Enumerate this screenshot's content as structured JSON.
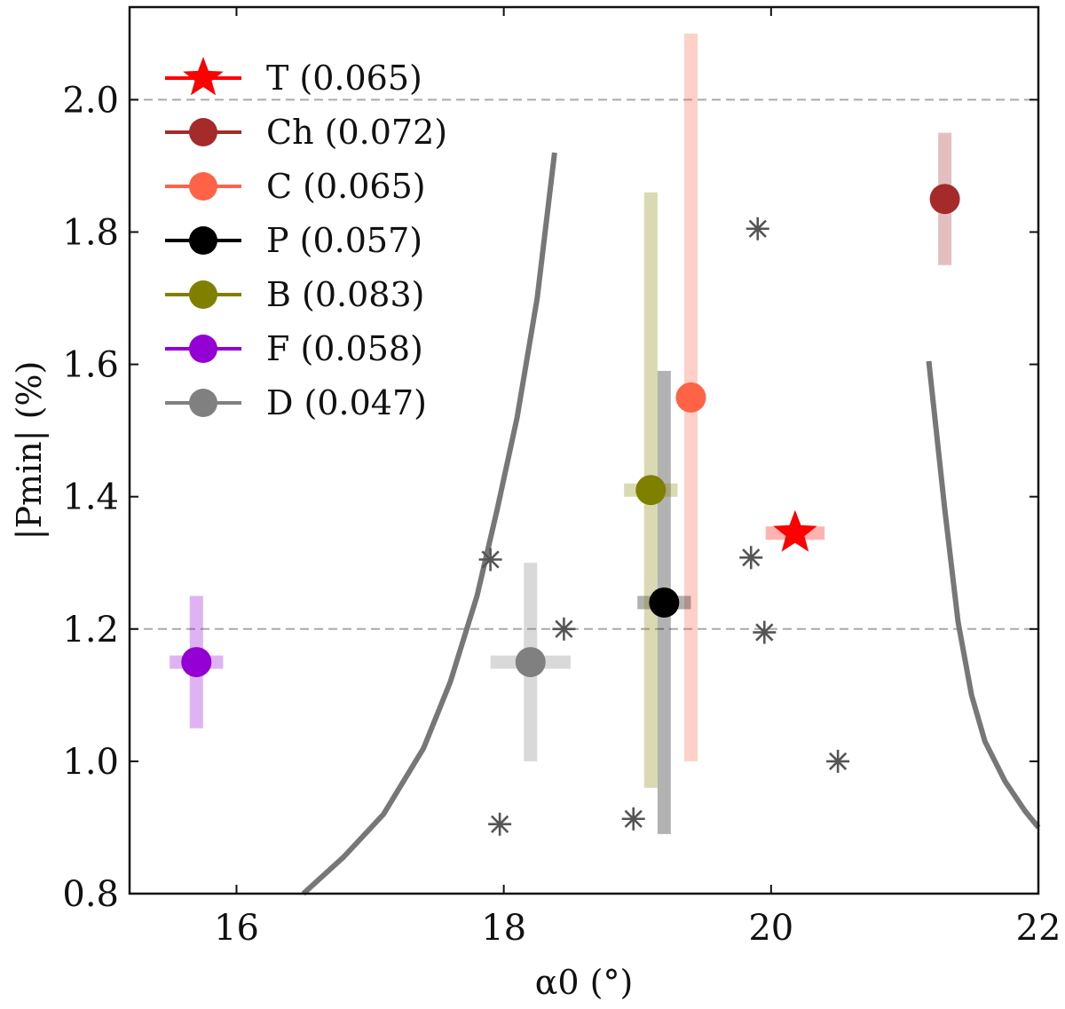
{
  "chart_data": {
    "type": "scatter",
    "xlabel": "α0 (°)",
    "ylabel": "|Pmin| (%)",
    "xlim": [
      15.2,
      22.0
    ],
    "ylim": [
      0.8,
      2.14
    ],
    "xticks": [
      16,
      18,
      20,
      22
    ],
    "yticks": [
      0.8,
      1.0,
      1.2,
      1.4,
      1.6,
      1.8,
      2.0
    ],
    "ytick_labels": [
      "0.8",
      "1.0",
      "1.2",
      "1.4",
      "1.6",
      "1.8",
      "2.0"
    ],
    "reference_lines": [
      2.0,
      1.2
    ],
    "legend_position": "top-left",
    "series": [
      {
        "name": "T (0.065)",
        "color": "#ff0000",
        "marker": "star",
        "x": 20.18,
        "y": 1.345,
        "xerr": 0.22,
        "yerr": 0.01
      },
      {
        "name": "Ch (0.072)",
        "color": "#a52a2a",
        "marker": "circle",
        "x": 21.3,
        "y": 1.85,
        "xerr": 0.0,
        "yerr": 0.1
      },
      {
        "name": "C (0.065)",
        "color": "#ff6347",
        "marker": "circle",
        "x": 19.4,
        "y": 1.55,
        "xerr": 0.0,
        "yerr": 0.55
      },
      {
        "name": "P (0.057)",
        "color": "#000000",
        "marker": "circle",
        "x": 19.2,
        "y": 1.24,
        "xerr": 0.2,
        "yerr": 0.35
      },
      {
        "name": "B (0.083)",
        "color": "#808000",
        "marker": "circle",
        "x": 19.1,
        "y": 1.41,
        "xerr": 0.2,
        "yerr": 0.45
      },
      {
        "name": "F (0.058)",
        "color": "#9400d3",
        "marker": "circle",
        "x": 15.7,
        "y": 1.15,
        "xerr": 0.2,
        "yerr": 0.1
      },
      {
        "name": "D (0.047)",
        "color": "#808080",
        "marker": "circle",
        "x": 18.2,
        "y": 1.15,
        "xerr": 0.3,
        "yerr": 0.15
      }
    ],
    "asterisks": [
      {
        "x": 19.9,
        "y": 1.805
      },
      {
        "x": 17.9,
        "y": 1.305
      },
      {
        "x": 18.45,
        "y": 1.2
      },
      {
        "x": 19.85,
        "y": 1.308
      },
      {
        "x": 19.95,
        "y": 1.195
      },
      {
        "x": 20.5,
        "y": 1.0
      },
      {
        "x": 17.97,
        "y": 0.905
      },
      {
        "x": 18.97,
        "y": 0.913
      }
    ],
    "curves": [
      {
        "name": "left-curve",
        "color": "#777777",
        "points": [
          [
            16.5,
            0.8
          ],
          [
            16.8,
            0.855
          ],
          [
            17.1,
            0.92
          ],
          [
            17.4,
            1.02
          ],
          [
            17.6,
            1.12
          ],
          [
            17.8,
            1.25
          ],
          [
            17.95,
            1.38
          ],
          [
            18.1,
            1.52
          ],
          [
            18.25,
            1.7
          ],
          [
            18.38,
            1.92
          ]
        ]
      },
      {
        "name": "right-curve",
        "color": "#777777",
        "points": [
          [
            21.18,
            1.605
          ],
          [
            21.3,
            1.38
          ],
          [
            21.4,
            1.21
          ],
          [
            21.5,
            1.1
          ],
          [
            21.6,
            1.03
          ],
          [
            21.75,
            0.97
          ],
          [
            21.9,
            0.925
          ],
          [
            22.0,
            0.9
          ]
        ]
      }
    ]
  }
}
